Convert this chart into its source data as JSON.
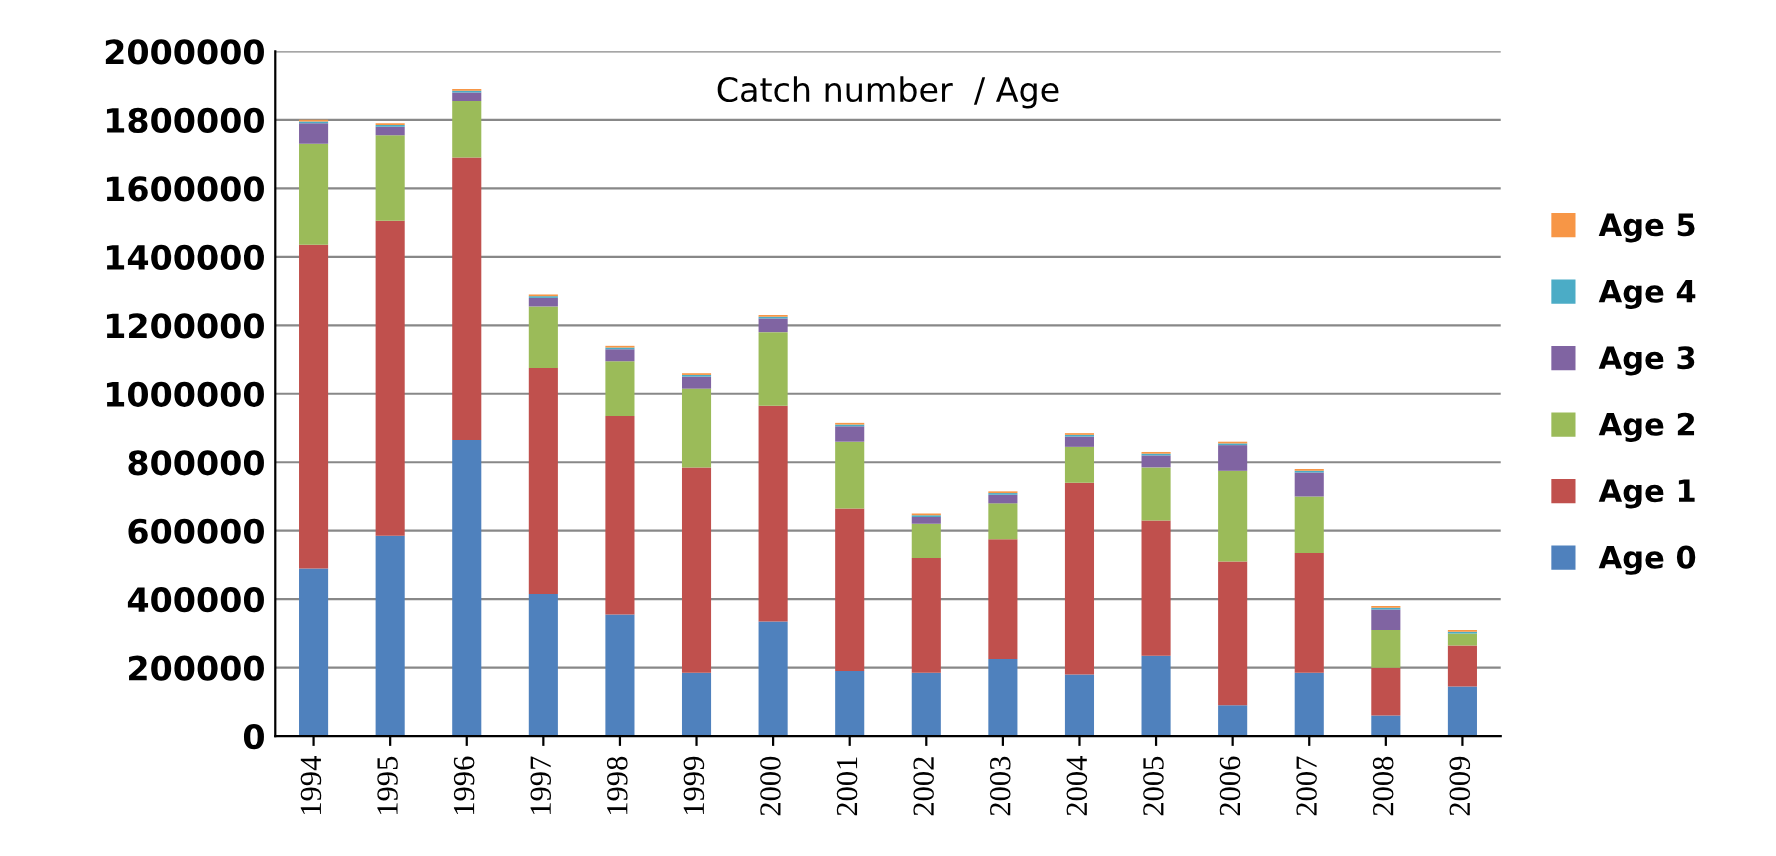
{
  "chart_data": {
    "type": "bar",
    "stacked": true,
    "title": "Catch number  / Age",
    "categories": [
      "1994",
      "1995",
      "1996",
      "1997",
      "1998",
      "1999",
      "2000",
      "2001",
      "2002",
      "2003",
      "2004",
      "2005",
      "2006",
      "2007",
      "2008",
      "2009"
    ],
    "series": [
      {
        "name": "Age 0",
        "color": "#4f81bd",
        "values": [
          490000,
          585000,
          865000,
          415000,
          355000,
          185000,
          335000,
          190000,
          185000,
          225000,
          180000,
          235000,
          90000,
          185000,
          60000,
          145000
        ]
      },
      {
        "name": "Age 1",
        "color": "#c0504d",
        "values": [
          945000,
          920000,
          825000,
          660000,
          580000,
          600000,
          630000,
          475000,
          335000,
          350000,
          560000,
          395000,
          420000,
          350000,
          140000,
          120000
        ]
      },
      {
        "name": "Age 2",
        "color": "#9bbb59",
        "values": [
          295000,
          250000,
          165000,
          180000,
          160000,
          230000,
          215000,
          195000,
          100000,
          105000,
          105000,
          155000,
          265000,
          165000,
          110000,
          35000
        ]
      },
      {
        "name": "Age 3",
        "color": "#8064a2",
        "values": [
          60000,
          25000,
          25000,
          25000,
          35000,
          35000,
          40000,
          45000,
          20000,
          25000,
          30000,
          35000,
          75000,
          70000,
          60000,
          0
        ]
      },
      {
        "name": "Age 4",
        "color": "#4bacc6",
        "values": [
          5000,
          5000,
          5000,
          5000,
          5000,
          5000,
          5000,
          5000,
          5000,
          5000,
          5000,
          5000,
          5000,
          5000,
          5000,
          5000
        ]
      },
      {
        "name": "Age 5",
        "color": "#f79646",
        "values": [
          5000,
          5000,
          5000,
          5000,
          5000,
          5000,
          5000,
          5000,
          5000,
          5000,
          5000,
          5000,
          5000,
          5000,
          5000,
          5000
        ]
      }
    ],
    "ylim": [
      0,
      2000000
    ],
    "yticks": [
      0,
      200000,
      400000,
      600000,
      800000,
      1000000,
      1200000,
      1400000,
      1600000,
      1800000,
      2000000
    ],
    "grid": "y",
    "legend": "right"
  }
}
